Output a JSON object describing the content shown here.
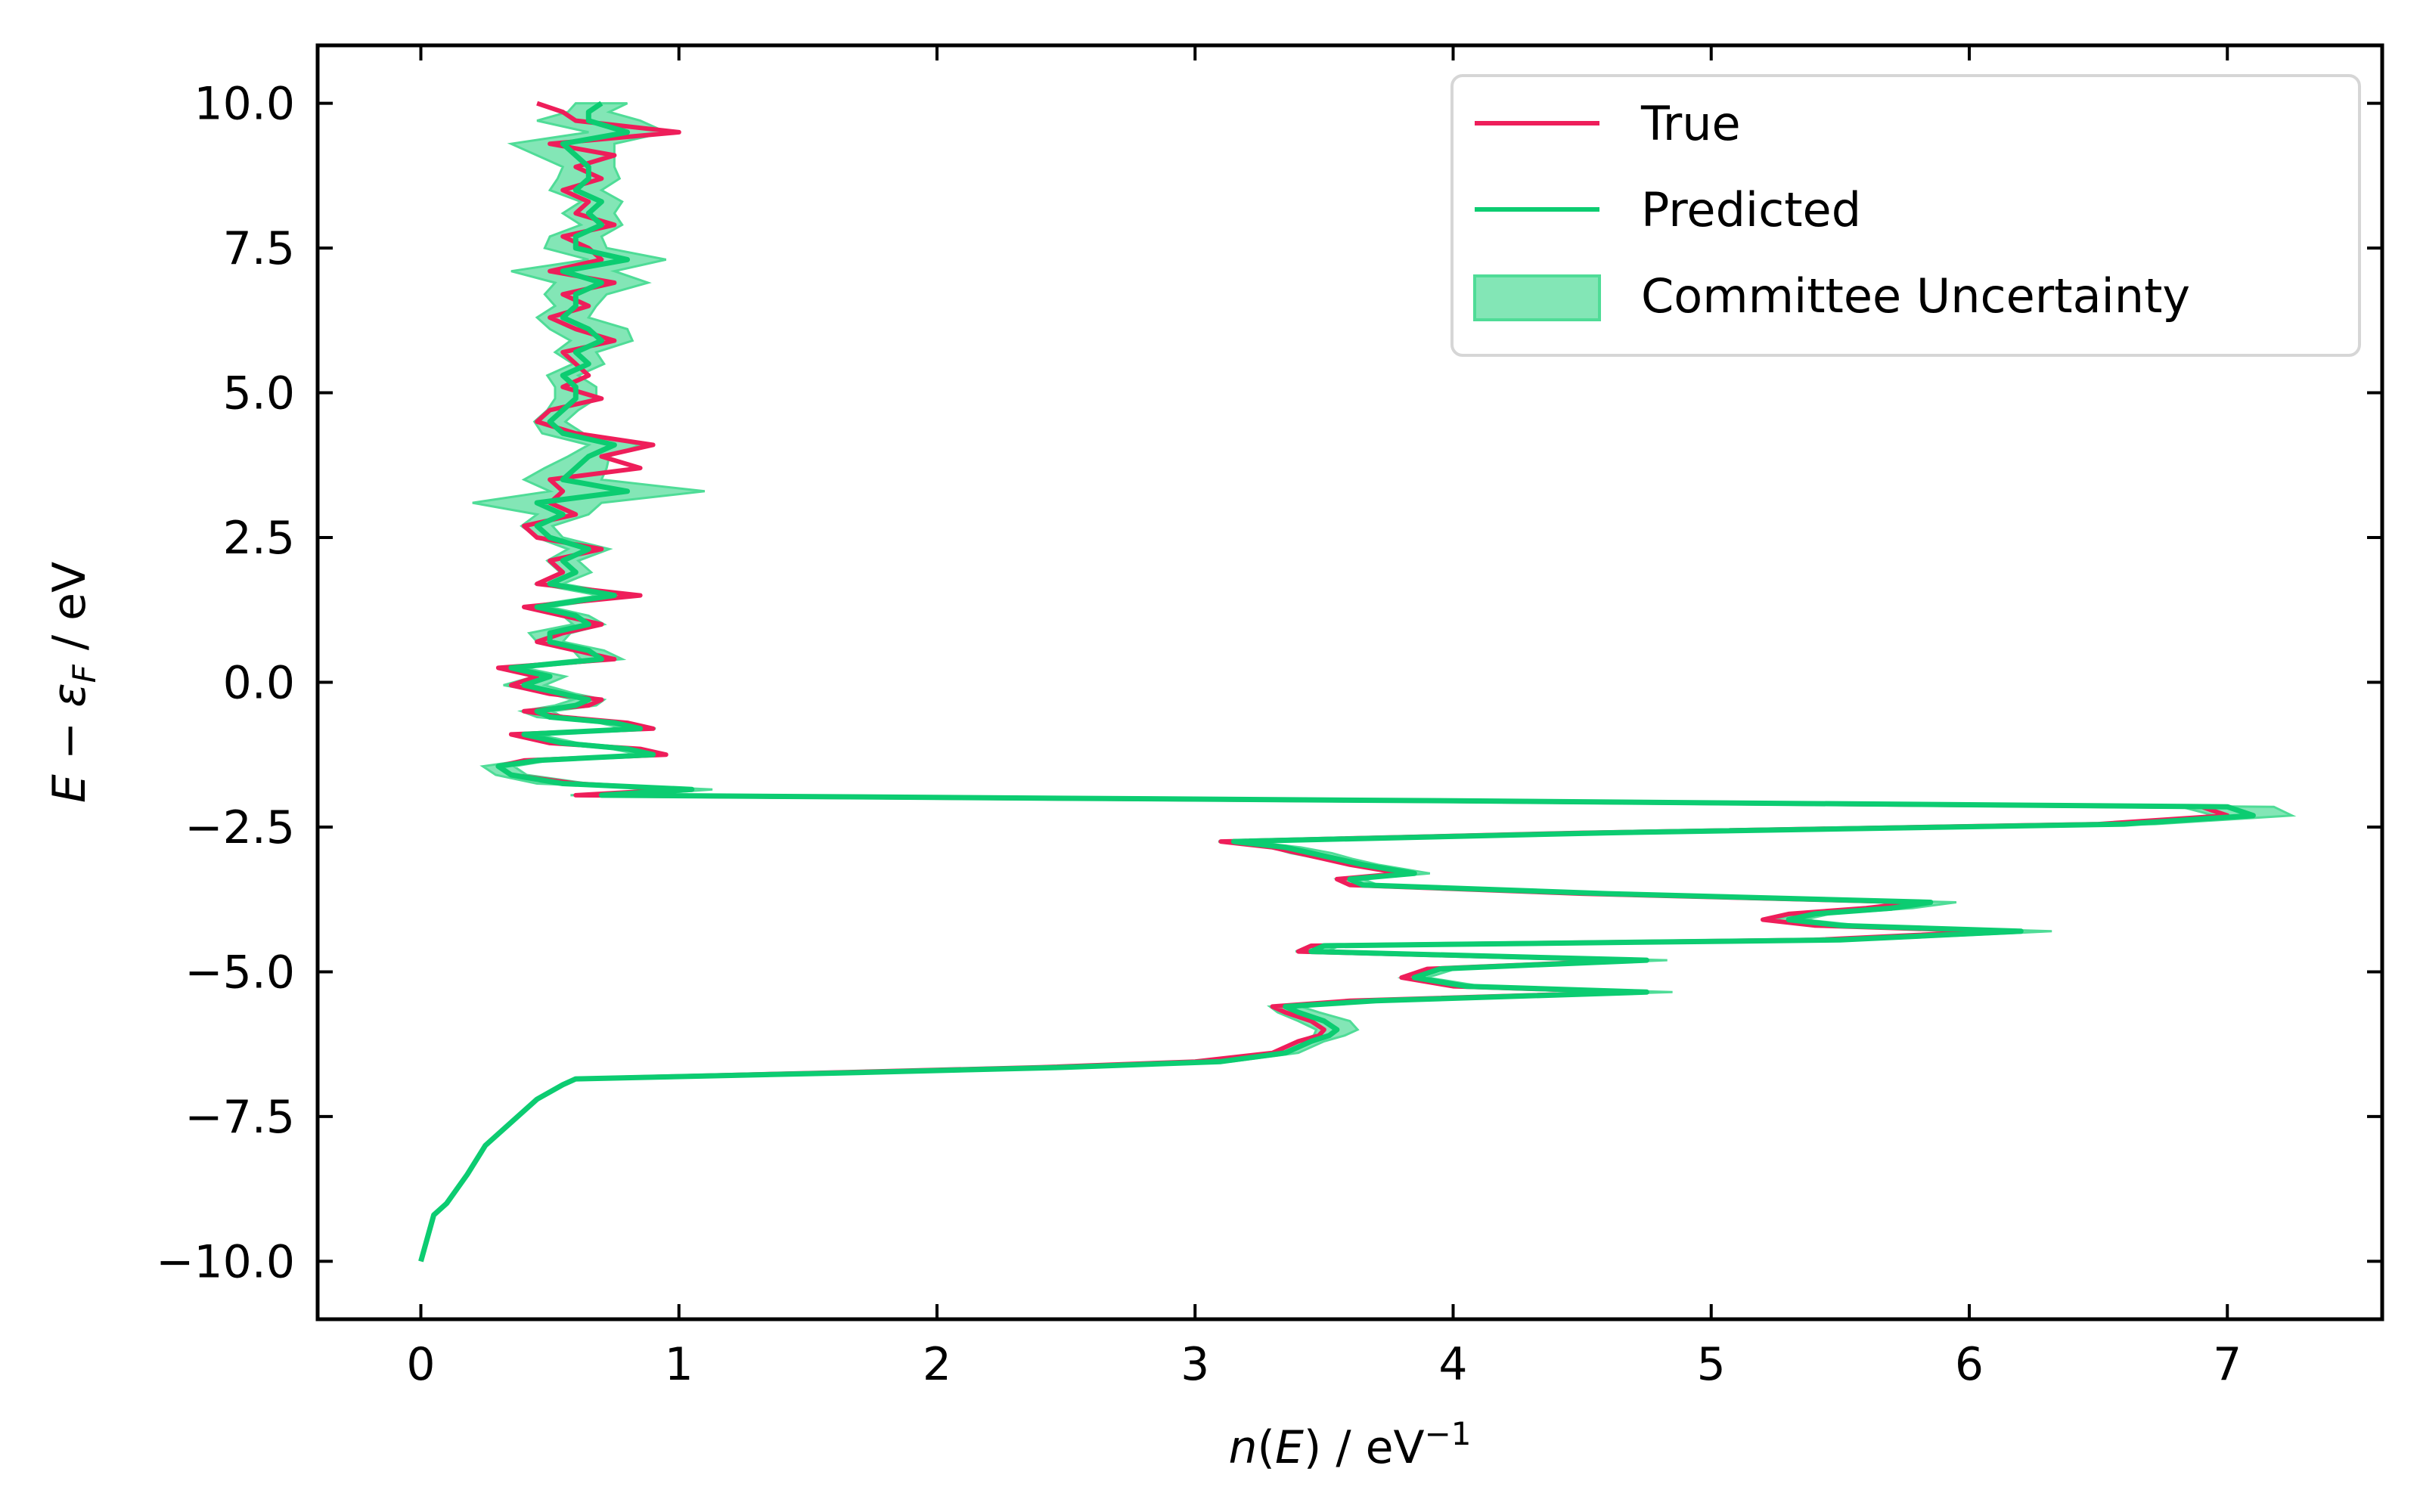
{
  "chart_data": {
    "type": "line",
    "orientation": "horizontal",
    "xlabel": {
      "italic": "n",
      "mid": "(",
      "italic2": "E",
      "rest": ") / eV",
      "sup": "−1"
    },
    "ylabel": {
      "italic": "E",
      "mid": " − ",
      "italic2": "ε",
      "sub": "F",
      "rest": " / eV"
    },
    "xlim": [
      -0.4,
      7.6
    ],
    "ylim": [
      -11.0,
      11.0
    ],
    "xticks": [
      0,
      1,
      2,
      3,
      4,
      5,
      6,
      7
    ],
    "xtick_labels": [
      "0",
      "1",
      "2",
      "3",
      "4",
      "5",
      "6",
      "7"
    ],
    "yticks": [
      10.0,
      7.5,
      5.0,
      2.5,
      0.0,
      -2.5,
      -5.0,
      -7.5,
      -10.0
    ],
    "ytick_labels": [
      "10.0",
      "7.5",
      "5.0",
      "2.5",
      "0.0",
      "−2.5",
      "−5.0",
      "−7.5",
      "−10.0"
    ],
    "grid": false,
    "legend_position": "top-right",
    "legend": [
      "True",
      "Predicted",
      "Committee Uncertainty"
    ],
    "colors": {
      "true": "#ee1e5a",
      "predicted": "#0ccc71",
      "band": "#4fdc97"
    },
    "series": [
      {
        "name": "True",
        "y": [
          -10.0,
          -9.2,
          -9.0,
          -8.5,
          -8.0,
          -7.6,
          -7.2,
          -6.95,
          -6.85,
          -6.75,
          -6.65,
          -6.55,
          -6.4,
          -6.2,
          -6.1,
          -6.0,
          -5.85,
          -5.7,
          -5.6,
          -5.5,
          -5.35,
          -5.25,
          -5.1,
          -4.95,
          -4.8,
          -4.65,
          -4.55,
          -4.45,
          -4.3,
          -4.2,
          -4.1,
          -4.0,
          -3.9,
          -3.8,
          -3.65,
          -3.5,
          -3.4,
          -3.3,
          -3.15,
          -3.05,
          -2.95,
          -2.85,
          -2.75,
          -2.6,
          -2.45,
          -2.3,
          -2.15,
          -2.05,
          -1.95,
          -1.85,
          -1.75,
          -1.6,
          -1.45,
          -1.35,
          -1.25,
          -1.15,
          -1.05,
          -0.9,
          -0.8,
          -0.7,
          -0.6,
          -0.5,
          -0.4,
          -0.3,
          -0.2,
          -0.05,
          0.1,
          0.25,
          0.4,
          0.55,
          0.7,
          0.85,
          1.0,
          1.15,
          1.3,
          1.5,
          1.7,
          1.9,
          2.1,
          2.3,
          2.5,
          2.7,
          2.9,
          3.1,
          3.3,
          3.5,
          3.7,
          3.9,
          4.1,
          4.3,
          4.5,
          4.7,
          4.9,
          5.1,
          5.3,
          5.5,
          5.7,
          5.9,
          6.1,
          6.3,
          6.5,
          6.7,
          6.9,
          7.1,
          7.3,
          7.5,
          7.7,
          7.9,
          8.1,
          8.3,
          8.5,
          8.7,
          8.9,
          9.1,
          9.3,
          9.5,
          9.7,
          9.85,
          10.0
        ],
        "x": [
          0.0,
          0.05,
          0.1,
          0.18,
          0.25,
          0.35,
          0.45,
          0.55,
          0.6,
          1.5,
          2.4,
          3.0,
          3.3,
          3.4,
          3.48,
          3.5,
          3.45,
          3.35,
          3.3,
          3.6,
          4.7,
          4.0,
          3.8,
          3.9,
          4.7,
          3.4,
          3.45,
          5.4,
          6.1,
          5.4,
          5.2,
          5.3,
          5.6,
          5.8,
          4.5,
          3.6,
          3.55,
          3.8,
          3.6,
          3.5,
          3.4,
          3.3,
          3.1,
          4.5,
          6.5,
          7.0,
          6.9,
          4.0,
          0.6,
          1.0,
          0.6,
          0.35,
          0.3,
          0.4,
          0.95,
          0.85,
          0.5,
          0.35,
          0.9,
          0.8,
          0.55,
          0.4,
          0.65,
          0.7,
          0.5,
          0.35,
          0.45,
          0.3,
          0.75,
          0.6,
          0.45,
          0.55,
          0.7,
          0.55,
          0.4,
          0.85,
          0.45,
          0.55,
          0.5,
          0.7,
          0.45,
          0.4,
          0.6,
          0.5,
          0.55,
          0.5,
          0.85,
          0.7,
          0.9,
          0.6,
          0.45,
          0.5,
          0.7,
          0.55,
          0.65,
          0.6,
          0.55,
          0.75,
          0.6,
          0.5,
          0.65,
          0.55,
          0.75,
          0.5,
          0.7,
          0.65,
          0.55,
          0.75,
          0.6,
          0.65,
          0.55,
          0.7,
          0.6,
          0.75,
          0.5,
          1.0,
          0.6,
          0.55,
          0.45
        ]
      },
      {
        "name": "Predicted",
        "y": [
          -10.0,
          -9.2,
          -9.0,
          -8.5,
          -8.0,
          -7.6,
          -7.2,
          -6.95,
          -6.85,
          -6.75,
          -6.65,
          -6.55,
          -6.4,
          -6.2,
          -6.1,
          -6.0,
          -5.85,
          -5.7,
          -5.6,
          -5.5,
          -5.35,
          -5.25,
          -5.1,
          -4.95,
          -4.8,
          -4.65,
          -4.55,
          -4.45,
          -4.3,
          -4.2,
          -4.1,
          -4.0,
          -3.9,
          -3.8,
          -3.65,
          -3.5,
          -3.4,
          -3.3,
          -3.15,
          -3.05,
          -2.95,
          -2.85,
          -2.75,
          -2.6,
          -2.45,
          -2.3,
          -2.15,
          -2.05,
          -1.95,
          -1.85,
          -1.75,
          -1.6,
          -1.45,
          -1.35,
          -1.25,
          -1.15,
          -1.05,
          -0.9,
          -0.8,
          -0.7,
          -0.6,
          -0.5,
          -0.4,
          -0.3,
          -0.2,
          -0.05,
          0.1,
          0.25,
          0.4,
          0.55,
          0.7,
          0.85,
          1.0,
          1.15,
          1.3,
          1.5,
          1.7,
          1.9,
          2.1,
          2.3,
          2.5,
          2.7,
          2.9,
          3.1,
          3.3,
          3.5,
          3.7,
          3.9,
          4.1,
          4.3,
          4.5,
          4.7,
          4.9,
          5.1,
          5.3,
          5.5,
          5.7,
          5.9,
          6.1,
          6.3,
          6.5,
          6.7,
          6.9,
          7.1,
          7.3,
          7.5,
          7.7,
          7.9,
          8.1,
          8.3,
          8.5,
          8.7,
          8.9,
          9.1,
          9.3,
          9.5,
          9.7,
          9.85,
          10.0
        ],
        "x": [
          0.0,
          0.05,
          0.1,
          0.18,
          0.25,
          0.35,
          0.45,
          0.55,
          0.6,
          1.6,
          2.5,
          3.1,
          3.35,
          3.45,
          3.52,
          3.55,
          3.5,
          3.4,
          3.35,
          3.7,
          4.75,
          4.05,
          3.85,
          3.95,
          4.75,
          3.45,
          3.5,
          5.5,
          6.2,
          5.5,
          5.3,
          5.4,
          5.7,
          5.85,
          4.6,
          3.65,
          3.6,
          3.85,
          3.65,
          3.55,
          3.45,
          3.35,
          3.15,
          4.6,
          6.6,
          7.1,
          7.0,
          4.1,
          0.7,
          1.05,
          0.55,
          0.35,
          0.3,
          0.45,
          0.9,
          0.8,
          0.55,
          0.4,
          0.85,
          0.75,
          0.5,
          0.45,
          0.6,
          0.65,
          0.55,
          0.4,
          0.5,
          0.35,
          0.7,
          0.65,
          0.5,
          0.5,
          0.65,
          0.6,
          0.45,
          0.75,
          0.5,
          0.6,
          0.55,
          0.65,
          0.5,
          0.45,
          0.55,
          0.45,
          0.8,
          0.55,
          0.6,
          0.65,
          0.75,
          0.55,
          0.5,
          0.55,
          0.6,
          0.6,
          0.55,
          0.65,
          0.6,
          0.7,
          0.65,
          0.55,
          0.6,
          0.6,
          0.7,
          0.55,
          0.8,
          0.6,
          0.6,
          0.7,
          0.65,
          0.7,
          0.6,
          0.65,
          0.65,
          0.6,
          0.55,
          0.8,
          0.65,
          0.65,
          0.7
        ]
      }
    ],
    "uncertainty": {
      "name": "Committee Uncertainty",
      "halfwidth": [
        0.0,
        0.0,
        0.0,
        0.0,
        0.0,
        0.0,
        0.0,
        0.01,
        0.01,
        0.02,
        0.03,
        0.04,
        0.05,
        0.05,
        0.06,
        0.08,
        0.1,
        0.08,
        0.06,
        0.06,
        0.1,
        0.06,
        0.05,
        0.06,
        0.08,
        0.06,
        0.06,
        0.1,
        0.12,
        0.08,
        0.06,
        0.06,
        0.08,
        0.1,
        0.08,
        0.06,
        0.05,
        0.06,
        0.06,
        0.06,
        0.08,
        0.06,
        0.06,
        0.08,
        0.12,
        0.15,
        0.18,
        0.1,
        0.12,
        0.08,
        0.1,
        0.06,
        0.06,
        0.05,
        0.05,
        0.06,
        0.06,
        0.05,
        0.06,
        0.06,
        0.05,
        0.06,
        0.08,
        0.06,
        0.05,
        0.08,
        0.06,
        0.05,
        0.08,
        0.06,
        0.05,
        0.08,
        0.06,
        0.05,
        0.05,
        0.06,
        0.05,
        0.06,
        0.06,
        0.08,
        0.05,
        0.06,
        0.1,
        0.25,
        0.3,
        0.15,
        0.12,
        0.08,
        0.1,
        0.08,
        0.06,
        0.06,
        0.08,
        0.08,
        0.06,
        0.06,
        0.08,
        0.12,
        0.15,
        0.1,
        0.08,
        0.12,
        0.18,
        0.2,
        0.15,
        0.12,
        0.1,
        0.08,
        0.1,
        0.08,
        0.1,
        0.12,
        0.1,
        0.15,
        0.2,
        0.15,
        0.2,
        0.08,
        0.1
      ]
    }
  }
}
